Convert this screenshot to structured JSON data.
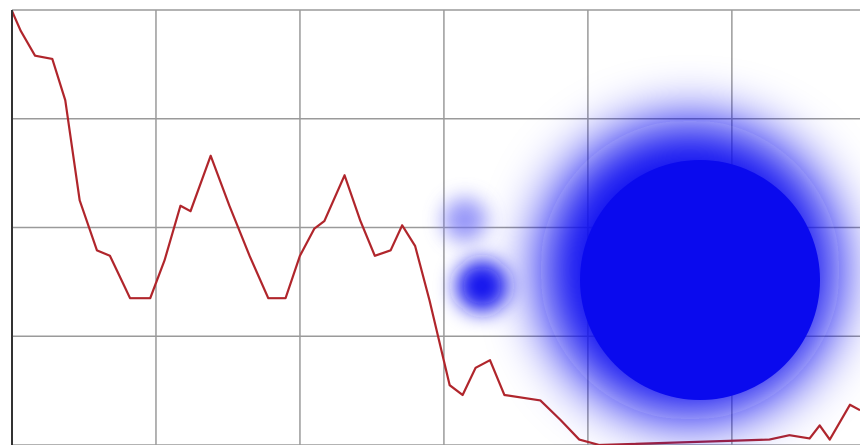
{
  "chart_data": {
    "type": "line",
    "x": [
      0,
      0.06,
      0.16,
      0.28,
      0.37,
      0.47,
      0.59,
      0.68,
      0.82,
      0.96,
      1.06,
      1.17,
      1.24,
      1.38,
      1.51,
      1.65,
      1.78,
      1.9,
      2.0,
      2.1,
      2.17,
      2.31,
      2.42,
      2.52,
      2.63,
      2.71,
      2.8,
      2.9,
      3.04,
      3.13,
      3.22,
      3.32,
      3.42,
      3.67,
      3.81,
      3.94,
      4.08,
      5.26,
      5.4,
      5.54,
      5.61,
      5.68,
      5.82,
      5.89
    ],
    "values": [
      3.99,
      3.81,
      3.58,
      3.55,
      3.17,
      2.25,
      1.79,
      1.74,
      1.35,
      1.35,
      1.7,
      2.2,
      2.15,
      2.66,
      2.2,
      1.74,
      1.35,
      1.35,
      1.74,
      1.99,
      2.06,
      2.48,
      2.06,
      1.74,
      1.79,
      2.02,
      1.83,
      1.33,
      0.55,
      0.46,
      0.71,
      0.78,
      0.46,
      0.41,
      0.23,
      0.05,
      0,
      0.05,
      0.09,
      0.06,
      0.18,
      0.05,
      0.37,
      0.32
    ],
    "color": "#b0252b",
    "xlim": [
      0,
      5.89
    ],
    "ylim": [
      0,
      4
    ],
    "xticks": [
      0,
      1,
      2,
      3,
      4,
      5
    ],
    "yticks": [
      0,
      1,
      2,
      3,
      4
    ],
    "grid": true
  }
}
